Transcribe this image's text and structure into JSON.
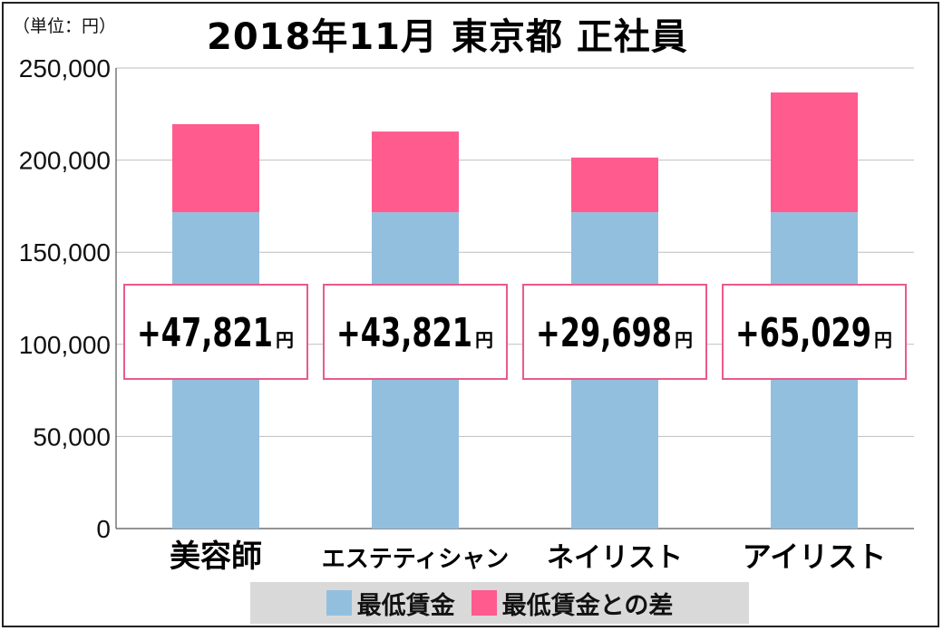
{
  "unit_note": "（単位：円）",
  "colors": {
    "base": "#93bfdf",
    "diff": "#ff5b8f",
    "grid": "#bfbfbf",
    "box_border": "#e95a8d",
    "legend_bg": "#d9d9d9"
  },
  "chart_data": {
    "type": "bar",
    "stacked": true,
    "title": "2018年11月 東京都 正社員",
    "categories": [
      "美容師",
      "エステティシャン",
      "ネイリスト",
      "アイリスト"
    ],
    "series": [
      {
        "name": "最低賃金",
        "values": [
          171692,
          171692,
          171692,
          171692
        ]
      },
      {
        "name": "最低賃金との差",
        "values": [
          47821,
          43821,
          29698,
          65029
        ]
      }
    ],
    "diff_labels": [
      "+47,821",
      "+43,821",
      "+29,698",
      "+65,029"
    ],
    "diff_unit": "円",
    "ylim": [
      0,
      250000
    ],
    "yticks": [
      0,
      50000,
      100000,
      150000,
      200000,
      250000
    ],
    "ytick_labels": [
      "0",
      "50,000",
      "100,000",
      "150,000",
      "200,000",
      "250,000"
    ],
    "grid": true,
    "legend_position": "bottom"
  }
}
